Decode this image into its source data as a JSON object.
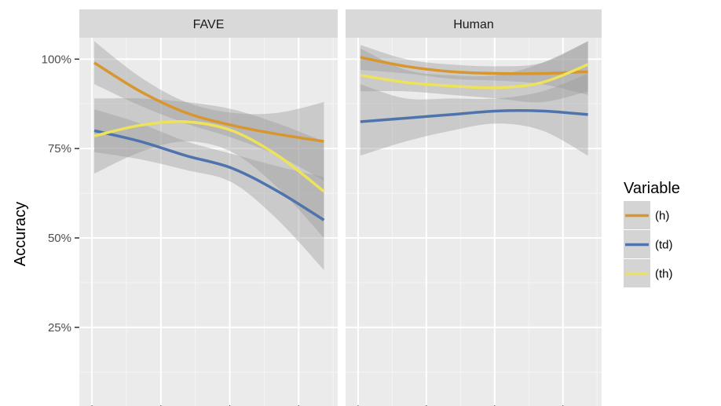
{
  "chart_data": {
    "type": "line",
    "ylabel": "Accuracy",
    "ylim": [
      0.03,
      1.06
    ],
    "xlim": [
      0.35,
      11.6
    ],
    "y_ticks": [
      {
        "value": 0.25,
        "label": "25%"
      },
      {
        "value": 0.5,
        "label": "50%"
      },
      {
        "value": 0.75,
        "label": "75%"
      },
      {
        "value": 1.0,
        "label": "100%"
      }
    ],
    "x_major_gridlines": [
      0.9,
      3.9,
      6.9,
      9.9
    ],
    "x_minor_gridlines": [
      2.4,
      5.4,
      8.4,
      11.4
    ],
    "grid": true,
    "confidence_bands": true,
    "legend": {
      "title": "Variable",
      "position": "right",
      "entries": [
        {
          "label": "(h)",
          "color": "#d8962f"
        },
        {
          "label": "(td)",
          "color": "#4f74ad"
        },
        {
          "label": "(th)",
          "color": "#efe25b"
        }
      ]
    },
    "facets": [
      {
        "title": "FAVE",
        "series": [
          {
            "name": "(h)",
            "color": "#d8962f",
            "x": [
              1,
              3,
              5,
              7,
              9,
              11
            ],
            "y": [
              0.99,
              0.91,
              0.85,
              0.815,
              0.79,
              0.77
            ],
            "lower": [
              0.93,
              0.87,
              0.82,
              0.78,
              0.73,
              0.66
            ],
            "upper": [
              1.05,
              0.95,
              0.88,
              0.85,
              0.85,
              0.88
            ]
          },
          {
            "name": "(td)",
            "color": "#4f74ad",
            "x": [
              1,
              3,
              5,
              7,
              9,
              11
            ],
            "y": [
              0.8,
              0.77,
              0.73,
              0.695,
              0.63,
              0.55
            ],
            "lower": [
              0.74,
              0.72,
              0.69,
              0.655,
              0.55,
              0.41
            ],
            "upper": [
              0.86,
              0.82,
              0.77,
              0.735,
              0.7,
              0.67
            ]
          },
          {
            "name": "(th)",
            "color": "#efe25b",
            "x": [
              1,
              3,
              5,
              7,
              9,
              11
            ],
            "y": [
              0.785,
              0.815,
              0.825,
              0.8,
              0.73,
              0.63
            ],
            "lower": [
              0.68,
              0.74,
              0.77,
              0.74,
              0.64,
              0.5
            ],
            "upper": [
              0.89,
              0.89,
              0.88,
              0.86,
              0.82,
              0.77
            ]
          }
        ]
      },
      {
        "title": "Human",
        "series": [
          {
            "name": "(h)",
            "color": "#d8962f",
            "x": [
              1,
              3,
              5,
              7,
              9,
              11
            ],
            "y": [
              1.005,
              0.98,
              0.965,
              0.96,
              0.96,
              0.965
            ],
            "lower": [
              0.97,
              0.96,
              0.945,
              0.94,
              0.93,
              0.9
            ],
            "upper": [
              1.04,
              1.0,
              0.985,
              0.98,
              0.99,
              1.05
            ]
          },
          {
            "name": "(td)",
            "color": "#4f74ad",
            "x": [
              1,
              3,
              5,
              7,
              9,
              11
            ],
            "y": [
              0.825,
              0.835,
              0.845,
              0.855,
              0.855,
              0.845
            ],
            "lower": [
              0.73,
              0.77,
              0.8,
              0.82,
              0.8,
              0.73
            ],
            "upper": [
              0.93,
              0.89,
              0.89,
              0.89,
              0.91,
              0.96
            ]
          },
          {
            "name": "(th)",
            "color": "#efe25b",
            "x": [
              1,
              3,
              5,
              7,
              9,
              11
            ],
            "y": [
              0.955,
              0.935,
              0.925,
              0.92,
              0.935,
              0.985
            ],
            "lower": [
              0.91,
              0.91,
              0.9,
              0.89,
              0.88,
              0.91
            ],
            "upper": [
              1.03,
              0.97,
              0.955,
              0.955,
              0.99,
              1.05
            ]
          }
        ]
      }
    ]
  }
}
